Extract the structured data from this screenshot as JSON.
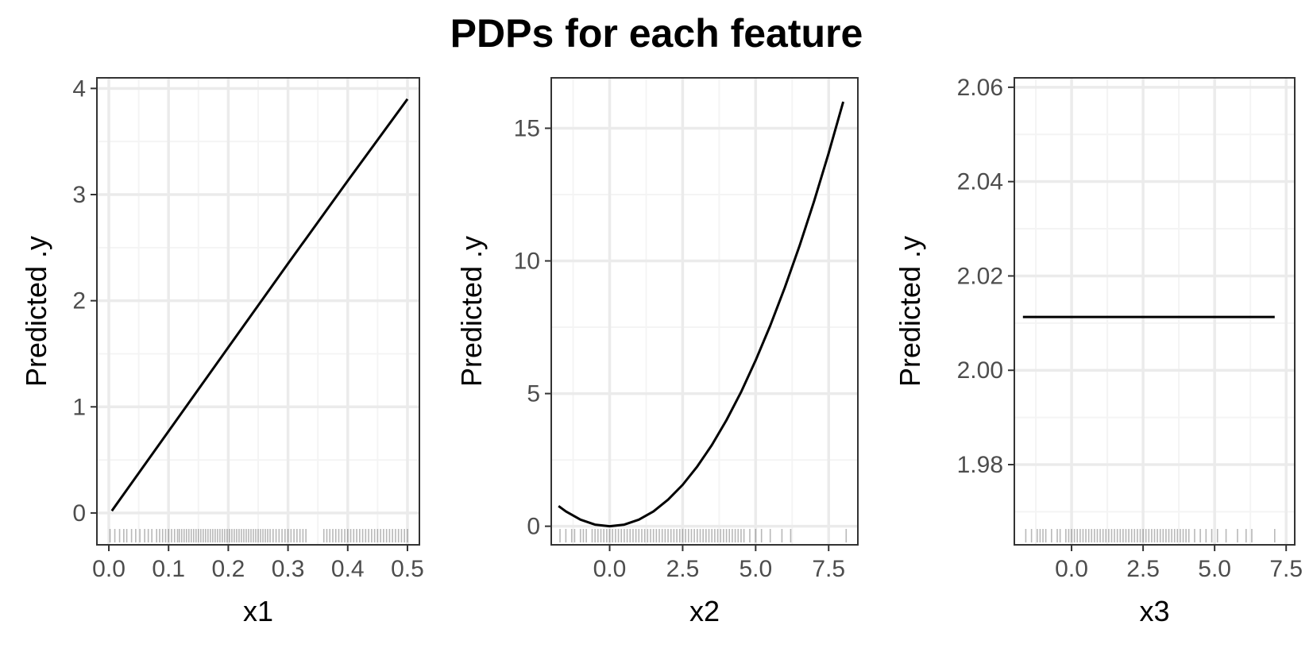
{
  "title": "PDPs for each feature",
  "colors": {
    "line": "#000000",
    "panel_border": "#333333",
    "grid_major": "#ebebeb",
    "grid_minor": "#f4f4f4",
    "tick_label": "#4d4d4d",
    "rug": "#000000"
  },
  "chart_data": [
    {
      "type": "line",
      "xlabel": "x1",
      "ylabel": "Predicted .y",
      "xlim": [
        -0.02,
        0.52
      ],
      "ylim": [
        -0.3,
        4.1
      ],
      "xticks": [
        0.0,
        0.1,
        0.2,
        0.3,
        0.4,
        0.5
      ],
      "xtick_labels": [
        "0.0",
        "0.1",
        "0.2",
        "0.3",
        "0.4",
        "0.5"
      ],
      "yticks": [
        0,
        1,
        2,
        3,
        4
      ],
      "ytick_labels": [
        "0",
        "1",
        "2",
        "3",
        "4"
      ],
      "grid": true,
      "x": [
        0.005,
        0.1,
        0.2,
        0.3,
        0.4,
        0.5
      ],
      "y": [
        0.02,
        0.77,
        1.56,
        2.35,
        3.13,
        3.9
      ],
      "rug": [
        0.002,
        0.01,
        0.018,
        0.025,
        0.03,
        0.038,
        0.045,
        0.052,
        0.06,
        0.066,
        0.072,
        0.08,
        0.085,
        0.09,
        0.095,
        0.1,
        0.105,
        0.11,
        0.115,
        0.118,
        0.122,
        0.126,
        0.13,
        0.134,
        0.138,
        0.142,
        0.146,
        0.15,
        0.154,
        0.158,
        0.162,
        0.166,
        0.17,
        0.174,
        0.178,
        0.182,
        0.186,
        0.19,
        0.194,
        0.198,
        0.202,
        0.206,
        0.21,
        0.214,
        0.218,
        0.222,
        0.226,
        0.23,
        0.234,
        0.238,
        0.242,
        0.246,
        0.25,
        0.254,
        0.258,
        0.262,
        0.266,
        0.27,
        0.275,
        0.28,
        0.285,
        0.29,
        0.295,
        0.3,
        0.305,
        0.31,
        0.315,
        0.32,
        0.325,
        0.33,
        0.36,
        0.365,
        0.37,
        0.375,
        0.38,
        0.385,
        0.39,
        0.395,
        0.4,
        0.405,
        0.41,
        0.415,
        0.42,
        0.425,
        0.43,
        0.435,
        0.44,
        0.445,
        0.45,
        0.455,
        0.46,
        0.465,
        0.47,
        0.475,
        0.48,
        0.485,
        0.49,
        0.495,
        0.5
      ]
    },
    {
      "type": "line",
      "xlabel": "x2",
      "ylabel": "Predicted .y",
      "xlim": [
        -2.0,
        8.5
      ],
      "ylim": [
        -0.7,
        16.9
      ],
      "xticks": [
        0.0,
        2.5,
        5.0,
        7.5
      ],
      "xtick_labels": [
        "0.0",
        "2.5",
        "5.0",
        "7.5"
      ],
      "yticks": [
        0,
        5,
        10,
        15
      ],
      "ytick_labels": [
        "0",
        "5",
        "10",
        "15"
      ],
      "grid": true,
      "x": [
        -1.75,
        -1.5,
        -1.0,
        -0.5,
        0.0,
        0.5,
        1.0,
        1.5,
        2.0,
        2.5,
        3.0,
        3.5,
        4.0,
        4.5,
        5.0,
        5.5,
        6.0,
        6.5,
        7.0,
        7.5,
        8.0
      ],
      "y": [
        0.76,
        0.56,
        0.25,
        0.06,
        0.0,
        0.06,
        0.25,
        0.56,
        1.0,
        1.56,
        2.25,
        3.06,
        4.0,
        5.06,
        6.25,
        7.56,
        9.0,
        10.56,
        12.25,
        14.06,
        16.0
      ],
      "rug": [
        -1.7,
        -1.5,
        -1.3,
        -1.2,
        -1.0,
        -0.9,
        -0.8,
        -0.6,
        -0.5,
        -0.4,
        -0.3,
        -0.2,
        -0.1,
        0.0,
        0.1,
        0.2,
        0.3,
        0.4,
        0.5,
        0.6,
        0.7,
        0.8,
        0.9,
        1.0,
        1.1,
        1.2,
        1.3,
        1.4,
        1.5,
        1.6,
        1.7,
        1.8,
        1.9,
        2.0,
        2.1,
        2.2,
        2.3,
        2.4,
        2.5,
        2.6,
        2.7,
        2.8,
        2.9,
        3.0,
        3.1,
        3.2,
        3.3,
        3.4,
        3.5,
        3.6,
        3.7,
        3.8,
        3.9,
        4.0,
        4.1,
        4.2,
        4.3,
        4.4,
        4.5,
        4.6,
        4.8,
        5.0,
        5.2,
        5.5,
        5.9,
        6.2,
        8.1
      ]
    },
    {
      "type": "line",
      "xlabel": "x3",
      "ylabel": "Predicted .y",
      "xlim": [
        -2.0,
        7.8
      ],
      "ylim": [
        1.963,
        2.062
      ],
      "xticks": [
        0.0,
        2.5,
        5.0,
        7.5
      ],
      "xtick_labels": [
        "0.0",
        "2.5",
        "5.0",
        "7.5"
      ],
      "yticks": [
        1.98,
        2.0,
        2.02,
        2.04,
        2.06
      ],
      "ytick_labels": [
        "1.98",
        "2.00",
        "2.02",
        "2.04",
        "2.06"
      ],
      "grid": true,
      "x": [
        -1.7,
        7.1
      ],
      "y": [
        2.0113,
        2.0113
      ],
      "rug": [
        -1.6,
        -1.4,
        -1.2,
        -1.1,
        -1.0,
        -0.9,
        -0.7,
        -0.5,
        -0.4,
        -0.2,
        -0.1,
        0.0,
        0.1,
        0.2,
        0.3,
        0.4,
        0.5,
        0.6,
        0.7,
        0.8,
        0.9,
        1.0,
        1.1,
        1.2,
        1.3,
        1.4,
        1.5,
        1.6,
        1.7,
        1.8,
        1.9,
        2.0,
        2.1,
        2.2,
        2.3,
        2.4,
        2.5,
        2.6,
        2.7,
        2.8,
        2.9,
        3.0,
        3.1,
        3.2,
        3.3,
        3.4,
        3.5,
        3.6,
        3.7,
        3.8,
        3.9,
        4.0,
        4.1,
        4.3,
        4.5,
        4.7,
        4.9,
        5.1,
        5.4,
        5.8,
        6.1,
        6.3,
        7.1
      ]
    }
  ]
}
